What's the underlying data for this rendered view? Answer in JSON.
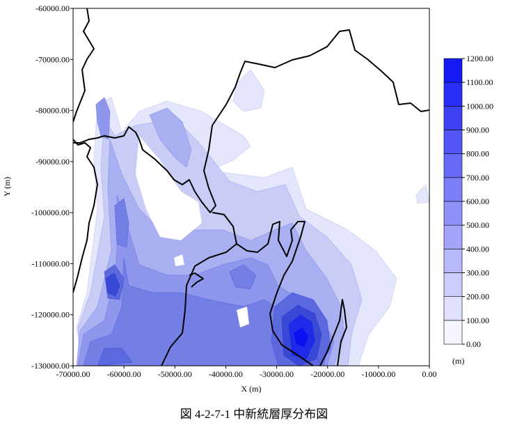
{
  "caption": "図 4-2-7-1 中新統層厚分布図",
  "chart_data": {
    "type": "heatmap",
    "subtype": "filled-contour map",
    "xlabel": "X (m)",
    "ylabel": "Y (m)",
    "xlim": [
      -70000,
      0
    ],
    "ylim": [
      -130000,
      -60000
    ],
    "x_ticks": [
      -70000,
      -60000,
      -50000,
      -40000,
      -30000,
      -20000,
      -10000,
      0
    ],
    "y_ticks": [
      -60000,
      -70000,
      -80000,
      -90000,
      -100000,
      -110000,
      -120000,
      -130000
    ],
    "x_tick_labels": [
      "-70000.00",
      "-60000.00",
      "-50000.00",
      "-40000.00",
      "-30000.00",
      "-20000.00",
      "-10000.00",
      "0.00"
    ],
    "y_tick_labels": [
      "-60000.00",
      "-70000.00",
      "-80000.00",
      "-90000.00",
      "-100000.00",
      "-110000.00",
      "-120000.00",
      "-130000.00"
    ],
    "colorbar": {
      "unit": "(m)",
      "levels": [
        0,
        100,
        200,
        300,
        400,
        500,
        600,
        700,
        800,
        900,
        1000,
        1100,
        1200
      ],
      "level_labels": [
        "0.00",
        "100.00",
        "200.00",
        "300.00",
        "400.00",
        "500.00",
        "600.00",
        "700.00",
        "800.00",
        "900.00",
        "1000.00",
        "1100.00",
        "1200.00"
      ],
      "low_color": "#ffffff",
      "high_color": "#0a10f0"
    },
    "peaks": [
      {
        "x": -25000,
        "y": -124000,
        "value": 1250
      },
      {
        "x": -62000,
        "y": -114500,
        "value": 900
      },
      {
        "x": -61500,
        "y": -103500,
        "value": 700
      },
      {
        "x": -65000,
        "y": -127000,
        "value": 700
      },
      {
        "x": -58000,
        "y": -82500,
        "value": 400
      },
      {
        "x": -35500,
        "y": -111500,
        "value": 650
      }
    ],
    "grid": false,
    "legend_position": "right"
  }
}
